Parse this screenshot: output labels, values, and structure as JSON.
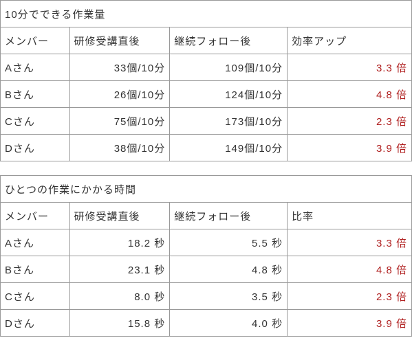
{
  "table1": {
    "title": "10分でできる作業量",
    "columns": [
      "メンバー",
      "研修受講直後",
      "継続フォロー後",
      "効率アップ"
    ],
    "rows": [
      {
        "member": "Aさん",
        "before": "33個/10分",
        "after": "109個/10分",
        "ratio": "3.3 倍"
      },
      {
        "member": "Bさん",
        "before": "26個/10分",
        "after": "124個/10分",
        "ratio": "4.8 倍"
      },
      {
        "member": "Cさん",
        "before": "75個/10分",
        "after": "173個/10分",
        "ratio": "2.3 倍"
      },
      {
        "member": "Dさん",
        "before": "38個/10分",
        "after": "149個/10分",
        "ratio": "3.9 倍"
      }
    ]
  },
  "table2": {
    "title": "ひとつの作業にかかる時間",
    "columns": [
      "メンバー",
      "研修受講直後",
      "継続フォロー後",
      "比率"
    ],
    "rows": [
      {
        "member": "Aさん",
        "before": "18.2 秒",
        "after": "5.5 秒",
        "ratio": "3.3 倍"
      },
      {
        "member": "Bさん",
        "before": "23.1 秒",
        "after": "4.8 秒",
        "ratio": "4.8 倍"
      },
      {
        "member": "Cさん",
        "before": "8.0 秒",
        "after": "3.5 秒",
        "ratio": "2.3 倍"
      },
      {
        "member": "Dさん",
        "before": "15.8 秒",
        "after": "4.0 秒",
        "ratio": "3.9 倍"
      }
    ]
  },
  "colors": {
    "border": "#999999",
    "text": "#333333",
    "ratio_text": "#b02020",
    "background": "#ffffff"
  }
}
